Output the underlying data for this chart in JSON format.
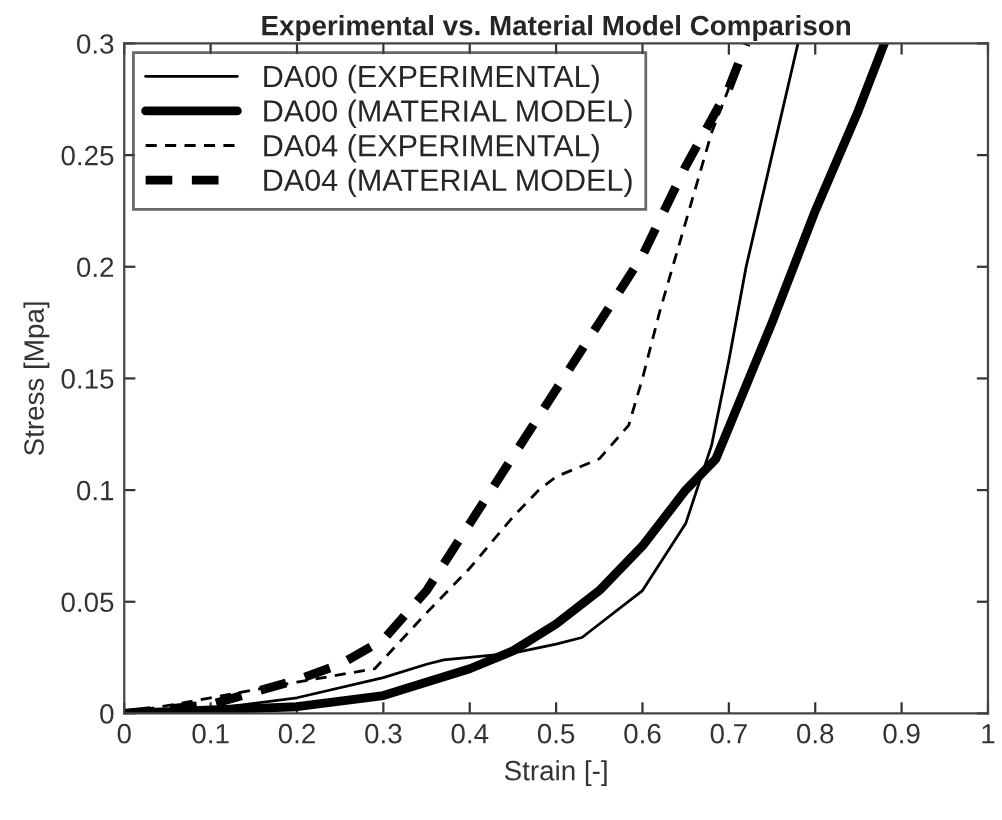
{
  "chart_data": {
    "type": "line",
    "title": "Experimental vs. Material Model Comparison",
    "xlabel": "Strain [-]",
    "ylabel": "Stress [Mpa]",
    "xlim": [
      0,
      1
    ],
    "xticks": [
      0,
      0.1,
      0.2,
      0.3,
      0.4,
      0.5,
      0.6,
      0.7,
      0.8,
      0.9,
      1
    ],
    "ylim": [
      0,
      0.3
    ],
    "yticks": [
      0,
      0.05,
      0.1,
      0.15,
      0.2,
      0.25,
      0.3
    ],
    "grid": false,
    "legend": "top left",
    "marker": "none",
    "series": [
      {
        "name": "DA00 (EXPERIMENTAL)",
        "color": "#000000",
        "line_style": "solid",
        "x": [
          0,
          0.1,
          0.2,
          0.3,
          0.35,
          0.37,
          0.45,
          0.5,
          0.53,
          0.54,
          0.6,
          0.65,
          0.68,
          0.7,
          0.72,
          0.75,
          0.78
        ],
        "values": [
          0,
          0.002,
          0.007,
          0.016,
          0.022,
          0.024,
          0.027,
          0.031,
          0.034,
          0.037,
          0.055,
          0.085,
          0.12,
          0.158,
          0.2,
          0.25,
          0.3
        ]
      },
      {
        "name": "DA00 (MATERIAL MODEL)",
        "color": "#000000",
        "line_style": "solid",
        "x": [
          0,
          0.2,
          0.3,
          0.4,
          0.45,
          0.5,
          0.55,
          0.6,
          0.65,
          0.685,
          0.7,
          0.75,
          0.8,
          0.85,
          0.88
        ],
        "values": [
          0,
          0.003,
          0.008,
          0.02,
          0.028,
          0.04,
          0.055,
          0.075,
          0.1,
          0.114,
          0.128,
          0.175,
          0.225,
          0.27,
          0.3
        ]
      },
      {
        "name": "DA04 (EXPERIMENTAL)",
        "color": "#000000",
        "line_style": "dashed",
        "x": [
          0,
          0.1,
          0.2,
          0.29,
          0.35,
          0.4,
          0.45,
          0.48,
          0.5,
          0.55,
          0.584,
          0.6,
          0.62,
          0.65,
          0.68,
          0.7
        ],
        "values": [
          0,
          0.007,
          0.014,
          0.02,
          0.045,
          0.065,
          0.088,
          0.1,
          0.106,
          0.114,
          0.129,
          0.15,
          0.18,
          0.22,
          0.26,
          0.28
        ]
      },
      {
        "name": "DA04 (MATERIAL MODEL)",
        "color": "#000000",
        "line_style": "dashed",
        "x": [
          0,
          0.1,
          0.2,
          0.25,
          0.3,
          0.35,
          0.4,
          0.45,
          0.5,
          0.55,
          0.6,
          0.65,
          0.7,
          0.72
        ],
        "values": [
          0,
          0.004,
          0.015,
          0.022,
          0.033,
          0.055,
          0.085,
          0.115,
          0.145,
          0.175,
          0.205,
          0.245,
          0.28,
          0.3
        ]
      }
    ]
  }
}
